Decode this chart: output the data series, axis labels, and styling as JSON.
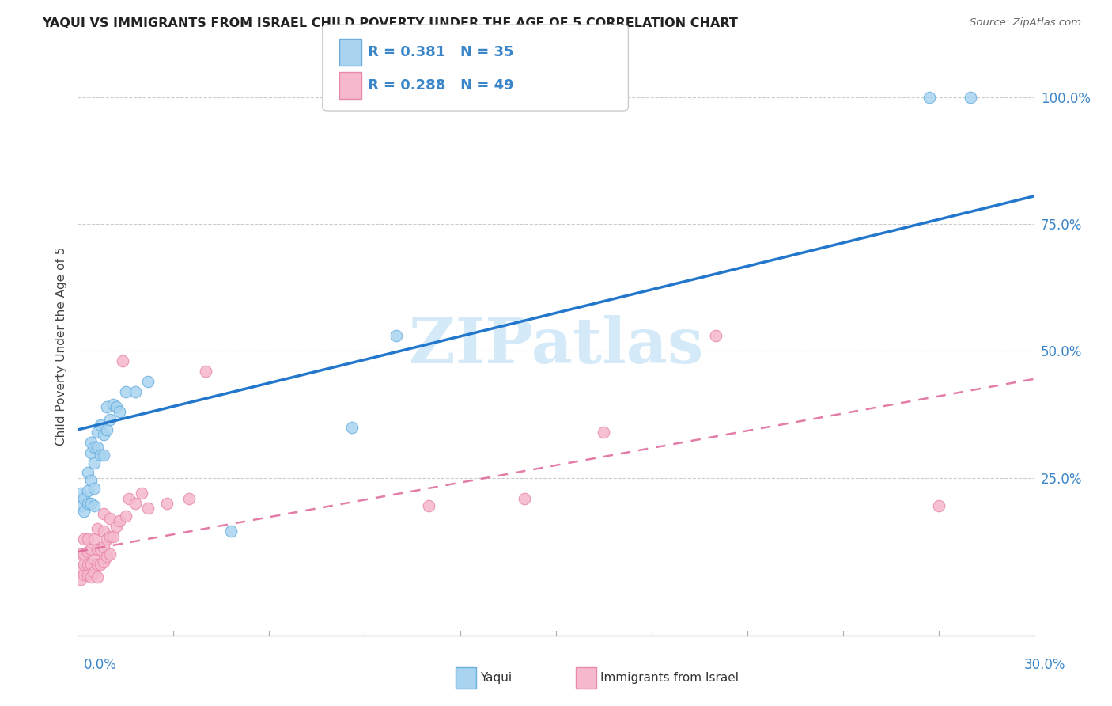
{
  "title": "YAQUI VS IMMIGRANTS FROM ISRAEL CHILD POVERTY UNDER THE AGE OF 5 CORRELATION CHART",
  "source": "Source: ZipAtlas.com",
  "ylabel": "Child Poverty Under the Age of 5",
  "ytick_vals": [
    0.0,
    0.25,
    0.5,
    0.75,
    1.0
  ],
  "ytick_labels": [
    "",
    "25.0%",
    "50.0%",
    "75.0%",
    "100.0%"
  ],
  "xtick_left": "0.0%",
  "xtick_right": "30.0%",
  "xmin": 0.0,
  "xmax": 0.3,
  "ymin": -0.06,
  "ymax": 1.08,
  "legend_r1": "R = 0.381",
  "legend_n1": "N = 35",
  "legend_r2": "R = 0.288",
  "legend_n2": "N = 49",
  "yaqui_color": "#a8d4f0",
  "israel_color": "#f5b8cc",
  "yaqui_edge": "#6aaee0",
  "israel_edge": "#e888aa",
  "trend_blue": "#2277cc",
  "trend_pink": "#dd6699",
  "watermark_text": "ZIPatlas",
  "watermark_color": "#d5eaf8",
  "yaqui_x": [
    0.001,
    0.001,
    0.002,
    0.002,
    0.003,
    0.003,
    0.003,
    0.004,
    0.004,
    0.004,
    0.004,
    0.005,
    0.005,
    0.005,
    0.005,
    0.006,
    0.006,
    0.007,
    0.007,
    0.008,
    0.008,
    0.009,
    0.009,
    0.01,
    0.011,
    0.012,
    0.013,
    0.015,
    0.018,
    0.022,
    0.048,
    0.086,
    0.1,
    0.267,
    0.28
  ],
  "yaqui_y": [
    0.195,
    0.22,
    0.185,
    0.21,
    0.2,
    0.225,
    0.26,
    0.2,
    0.245,
    0.3,
    0.32,
    0.195,
    0.23,
    0.28,
    0.31,
    0.31,
    0.34,
    0.295,
    0.355,
    0.295,
    0.335,
    0.345,
    0.39,
    0.365,
    0.395,
    0.39,
    0.38,
    0.42,
    0.42,
    0.44,
    0.145,
    0.35,
    0.53,
    1.0,
    1.0
  ],
  "israel_x": [
    0.001,
    0.001,
    0.001,
    0.002,
    0.002,
    0.002,
    0.002,
    0.003,
    0.003,
    0.003,
    0.003,
    0.004,
    0.004,
    0.004,
    0.005,
    0.005,
    0.005,
    0.006,
    0.006,
    0.006,
    0.006,
    0.007,
    0.007,
    0.008,
    0.008,
    0.008,
    0.008,
    0.009,
    0.009,
    0.01,
    0.01,
    0.01,
    0.011,
    0.012,
    0.013,
    0.014,
    0.015,
    0.016,
    0.018,
    0.02,
    0.022,
    0.028,
    0.035,
    0.04,
    0.11,
    0.14,
    0.165,
    0.2,
    0.27
  ],
  "israel_y": [
    0.05,
    0.07,
    0.1,
    0.06,
    0.08,
    0.1,
    0.13,
    0.06,
    0.08,
    0.105,
    0.13,
    0.055,
    0.08,
    0.11,
    0.065,
    0.09,
    0.13,
    0.055,
    0.08,
    0.11,
    0.15,
    0.08,
    0.11,
    0.085,
    0.115,
    0.145,
    0.18,
    0.095,
    0.13,
    0.1,
    0.135,
    0.17,
    0.135,
    0.155,
    0.165,
    0.48,
    0.175,
    0.21,
    0.2,
    0.22,
    0.19,
    0.2,
    0.21,
    0.46,
    0.195,
    0.21,
    0.34,
    0.53,
    0.195
  ],
  "blue_trend_x0": 0.0,
  "blue_trend_y0": 0.345,
  "blue_trend_x1": 0.3,
  "blue_trend_y1": 0.805,
  "pink_trend_x0": 0.0,
  "pink_trend_y0": 0.105,
  "pink_trend_x1": 0.3,
  "pink_trend_y1": 0.445
}
